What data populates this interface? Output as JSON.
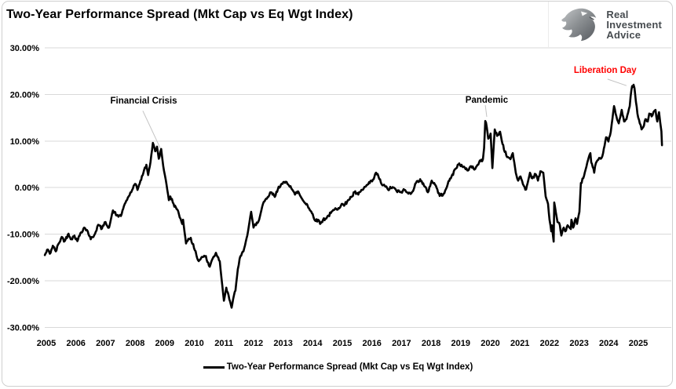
{
  "header": {
    "title": "Two-Year Performance Spread (Mkt Cap vs Eq Wgt Index)"
  },
  "logo": {
    "icon": "eagle-head-icon",
    "line1": "Real",
    "line2": "Investment",
    "line3": "Advice"
  },
  "legend": {
    "label": "Two-Year Performance Spread (Mkt Cap vs Eq Wgt Index)"
  },
  "colors": {
    "series_line": "#000000",
    "gridline": "#d9d9d9",
    "axis_text": "#000000",
    "leader_line": "#c3c3c3",
    "annotation_red": "#ff0000",
    "logo_gray_dark": "#5d6166",
    "logo_gray_light": "#b9bcbe"
  },
  "chart_data": {
    "type": "line",
    "title": "Two-Year Performance Spread (Mkt Cap vs Eq Wgt Index)",
    "xlabel": "",
    "ylabel": "",
    "grid": "horizontal",
    "legend_position": "bottom",
    "ylim": [
      -30,
      30
    ],
    "x_range_years": [
      2004.95,
      2025.8
    ],
    "x_tick_labels": [
      "2005",
      "2006",
      "2007",
      "2008",
      "2009",
      "2010",
      "2011",
      "2012",
      "2013",
      "2014",
      "2015",
      "2016",
      "2017",
      "2018",
      "2019",
      "2020",
      "2021",
      "2022",
      "2023",
      "2024",
      "2025"
    ],
    "y_tick_labels": [
      "30.00%",
      "20.00%",
      "10.00%",
      "0.00%",
      "-10.00%",
      "-20.00%",
      "-30.00%"
    ],
    "y_tick_values": [
      30,
      20,
      10,
      0,
      -10,
      -20,
      -30
    ],
    "series": [
      {
        "name": "Two-Year Performance Spread (Mkt Cap vs Eq Wgt Index)",
        "color": "#000000",
        "points": [
          [
            2004.95,
            -14.5
          ],
          [
            2005.05,
            -13.3
          ],
          [
            2005.12,
            -14.2
          ],
          [
            2005.22,
            -12.5
          ],
          [
            2005.32,
            -13.7
          ],
          [
            2005.42,
            -12.0
          ],
          [
            2005.52,
            -10.6
          ],
          [
            2005.62,
            -11.5
          ],
          [
            2005.75,
            -9.9
          ],
          [
            2005.85,
            -11.1
          ],
          [
            2005.95,
            -10.3
          ],
          [
            2006.05,
            -11.5
          ],
          [
            2006.15,
            -9.8
          ],
          [
            2006.28,
            -8.6
          ],
          [
            2006.4,
            -9.4
          ],
          [
            2006.5,
            -11.1
          ],
          [
            2006.62,
            -10.2
          ],
          [
            2006.75,
            -8.0
          ],
          [
            2006.88,
            -8.8
          ],
          [
            2007.0,
            -7.4
          ],
          [
            2007.12,
            -8.6
          ],
          [
            2007.25,
            -4.9
          ],
          [
            2007.38,
            -6.0
          ],
          [
            2007.52,
            -6.1
          ],
          [
            2007.65,
            -3.5
          ],
          [
            2007.78,
            -1.9
          ],
          [
            2007.9,
            -0.5
          ],
          [
            2008.0,
            0.8
          ],
          [
            2008.08,
            -0.5
          ],
          [
            2008.18,
            1.5
          ],
          [
            2008.28,
            3.2
          ],
          [
            2008.38,
            4.9
          ],
          [
            2008.44,
            2.7
          ],
          [
            2008.52,
            5.5
          ],
          [
            2008.6,
            9.6
          ],
          [
            2008.68,
            7.8
          ],
          [
            2008.74,
            8.8
          ],
          [
            2008.8,
            6.2
          ],
          [
            2008.88,
            8.3
          ],
          [
            2008.95,
            4.6
          ],
          [
            2009.06,
            0.7
          ],
          [
            2009.14,
            -2.7
          ],
          [
            2009.19,
            -1.9
          ],
          [
            2009.3,
            -3.5
          ],
          [
            2009.4,
            -4.6
          ],
          [
            2009.48,
            -5.7
          ],
          [
            2009.59,
            -7.8
          ],
          [
            2009.62,
            -6.9
          ],
          [
            2009.72,
            -12.0
          ],
          [
            2009.8,
            -11.0
          ],
          [
            2009.88,
            -10.8
          ],
          [
            2009.99,
            -13.0
          ],
          [
            2010.07,
            -14.5
          ],
          [
            2010.15,
            -15.8
          ],
          [
            2010.25,
            -14.9
          ],
          [
            2010.39,
            -14.7
          ],
          [
            2010.44,
            -16.0
          ],
          [
            2010.52,
            -17.0
          ],
          [
            2010.6,
            -15.5
          ],
          [
            2010.73,
            -14.0
          ],
          [
            2010.86,
            -15.8
          ],
          [
            2010.92,
            -19.6
          ],
          [
            2011.0,
            -24.3
          ],
          [
            2011.08,
            -21.5
          ],
          [
            2011.13,
            -22.5
          ],
          [
            2011.21,
            -24.5
          ],
          [
            2011.26,
            -25.8
          ],
          [
            2011.31,
            -24.0
          ],
          [
            2011.39,
            -22.1
          ],
          [
            2011.47,
            -17.5
          ],
          [
            2011.53,
            -15.3
          ],
          [
            2011.66,
            -13.7
          ],
          [
            2011.79,
            -10.3
          ],
          [
            2011.92,
            -5.2
          ],
          [
            2012.0,
            -8.6
          ],
          [
            2012.11,
            -7.5
          ],
          [
            2012.19,
            -6.9
          ],
          [
            2012.32,
            -3.5
          ],
          [
            2012.45,
            -2.4
          ],
          [
            2012.59,
            -1.0
          ],
          [
            2012.72,
            -2.0
          ],
          [
            2012.85,
            0.2
          ],
          [
            2012.98,
            0.8
          ],
          [
            2013.12,
            1.2
          ],
          [
            2013.25,
            0.3
          ],
          [
            2013.4,
            -1.5
          ],
          [
            2013.5,
            -0.8
          ],
          [
            2013.6,
            -2.0
          ],
          [
            2013.7,
            -3.0
          ],
          [
            2013.8,
            -3.5
          ],
          [
            2013.9,
            -4.8
          ],
          [
            2014.0,
            -5.7
          ],
          [
            2014.1,
            -7.2
          ],
          [
            2014.18,
            -6.9
          ],
          [
            2014.25,
            -7.8
          ],
          [
            2014.35,
            -6.9
          ],
          [
            2014.48,
            -6.4
          ],
          [
            2014.61,
            -5.5
          ],
          [
            2014.74,
            -4.7
          ],
          [
            2014.87,
            -4.4
          ],
          [
            2014.98,
            -3.5
          ],
          [
            2015.06,
            -3.9
          ],
          [
            2015.19,
            -2.7
          ],
          [
            2015.33,
            -1.9
          ],
          [
            2015.41,
            -1.0
          ],
          [
            2015.54,
            -1.5
          ],
          [
            2015.67,
            -0.5
          ],
          [
            2015.8,
            0.3
          ],
          [
            2015.93,
            1.0
          ],
          [
            2016.06,
            1.8
          ],
          [
            2016.14,
            3.2
          ],
          [
            2016.22,
            2.4
          ],
          [
            2016.33,
            0.7
          ],
          [
            2016.46,
            0.2
          ],
          [
            2016.54,
            -0.4
          ],
          [
            2016.7,
            0.1
          ],
          [
            2016.83,
            -0.7
          ],
          [
            2016.96,
            -1.0
          ],
          [
            2017.1,
            -0.5
          ],
          [
            2017.23,
            -1.3
          ],
          [
            2017.36,
            -0.9
          ],
          [
            2017.49,
            1.0
          ],
          [
            2017.63,
            1.8
          ],
          [
            2017.76,
            0.4
          ],
          [
            2017.89,
            -1.0
          ],
          [
            2018.02,
            1.5
          ],
          [
            2018.16,
            0.4
          ],
          [
            2018.29,
            -1.8
          ],
          [
            2018.42,
            -1.3
          ],
          [
            2018.56,
            0.7
          ],
          [
            2018.69,
            2.4
          ],
          [
            2018.82,
            4.0
          ],
          [
            2018.95,
            5.2
          ],
          [
            2019.08,
            4.4
          ],
          [
            2019.22,
            3.7
          ],
          [
            2019.35,
            4.6
          ],
          [
            2019.49,
            4.0
          ],
          [
            2019.62,
            5.4
          ],
          [
            2019.75,
            6.1
          ],
          [
            2019.79,
            8.5
          ],
          [
            2019.83,
            14.3
          ],
          [
            2019.88,
            13.0
          ],
          [
            2019.93,
            10.5
          ],
          [
            2020.01,
            11.6
          ],
          [
            2020.07,
            4.2
          ],
          [
            2020.15,
            12.5
          ],
          [
            2020.23,
            11.1
          ],
          [
            2020.33,
            12.0
          ],
          [
            2020.41,
            9.4
          ],
          [
            2020.54,
            6.9
          ],
          [
            2020.68,
            6.1
          ],
          [
            2020.76,
            7.4
          ],
          [
            2020.86,
            3.2
          ],
          [
            2020.94,
            1.5
          ],
          [
            2021.02,
            2.4
          ],
          [
            2021.13,
            0.4
          ],
          [
            2021.21,
            -0.4
          ],
          [
            2021.34,
            3.2
          ],
          [
            2021.42,
            2.0
          ],
          [
            2021.53,
            2.9
          ],
          [
            2021.61,
            1.5
          ],
          [
            2021.69,
            3.5
          ],
          [
            2021.79,
            3.2
          ],
          [
            2021.87,
            -1.9
          ],
          [
            2021.95,
            -3.5
          ],
          [
            2022.0,
            -6.9
          ],
          [
            2022.06,
            -9.4
          ],
          [
            2022.08,
            -8.1
          ],
          [
            2022.14,
            -11.6
          ],
          [
            2022.16,
            -3.2
          ],
          [
            2022.27,
            -7.4
          ],
          [
            2022.35,
            -8.1
          ],
          [
            2022.4,
            -10.3
          ],
          [
            2022.48,
            -8.6
          ],
          [
            2022.53,
            -9.4
          ],
          [
            2022.61,
            -8.1
          ],
          [
            2022.72,
            -8.9
          ],
          [
            2022.74,
            -6.9
          ],
          [
            2022.8,
            -8.6
          ],
          [
            2022.88,
            -6.6
          ],
          [
            2022.93,
            -7.8
          ],
          [
            2023.01,
            -5.2
          ],
          [
            2023.06,
            1.0
          ],
          [
            2023.14,
            2.0
          ],
          [
            2023.25,
            4.6
          ],
          [
            2023.33,
            6.6
          ],
          [
            2023.38,
            7.4
          ],
          [
            2023.41,
            5.4
          ],
          [
            2023.51,
            3.2
          ],
          [
            2023.54,
            4.6
          ],
          [
            2023.65,
            6.0
          ],
          [
            2023.73,
            6.2
          ],
          [
            2023.81,
            7.4
          ],
          [
            2023.91,
            10.8
          ],
          [
            2023.99,
            9.9
          ],
          [
            2024.07,
            12.0
          ],
          [
            2024.18,
            17.5
          ],
          [
            2024.26,
            15.3
          ],
          [
            2024.34,
            13.8
          ],
          [
            2024.44,
            16.7
          ],
          [
            2024.52,
            14.2
          ],
          [
            2024.6,
            14.7
          ],
          [
            2024.71,
            17.5
          ],
          [
            2024.74,
            19.6
          ],
          [
            2024.79,
            21.8
          ],
          [
            2024.84,
            22.1
          ],
          [
            2024.87,
            21.4
          ],
          [
            2024.92,
            18.4
          ],
          [
            2024.97,
            15.9
          ],
          [
            2025.05,
            13.8
          ],
          [
            2025.11,
            12.5
          ],
          [
            2025.19,
            13.3
          ],
          [
            2025.24,
            14.7
          ],
          [
            2025.32,
            14.2
          ],
          [
            2025.37,
            15.9
          ],
          [
            2025.45,
            15.3
          ],
          [
            2025.51,
            16.2
          ],
          [
            2025.58,
            16.7
          ],
          [
            2025.64,
            14.2
          ],
          [
            2025.7,
            16.2
          ],
          [
            2025.74,
            14.0
          ],
          [
            2025.78,
            12.1
          ],
          [
            2025.8,
            9.1
          ]
        ]
      }
    ],
    "annotations": [
      {
        "label": "Financial Crisis",
        "color": "#000000",
        "text_at": [
          2008.29,
          18.6
        ],
        "leader": [
          [
            2008.26,
            16.5
          ],
          [
            2008.85,
            8.5
          ]
        ]
      },
      {
        "label": "Pandemic",
        "color": "#000000",
        "text_at": [
          2019.88,
          18.7
        ],
        "leader": [
          [
            2019.83,
            17.7
          ],
          [
            2019.88,
            15.2
          ]
        ]
      },
      {
        "label": "Liberation Day",
        "color": "#ff0000",
        "text_at": [
          2023.88,
          25.1
        ],
        "leader": [
          [
            2023.96,
            23.3
          ],
          [
            2024.6,
            21.9
          ]
        ]
      }
    ]
  }
}
